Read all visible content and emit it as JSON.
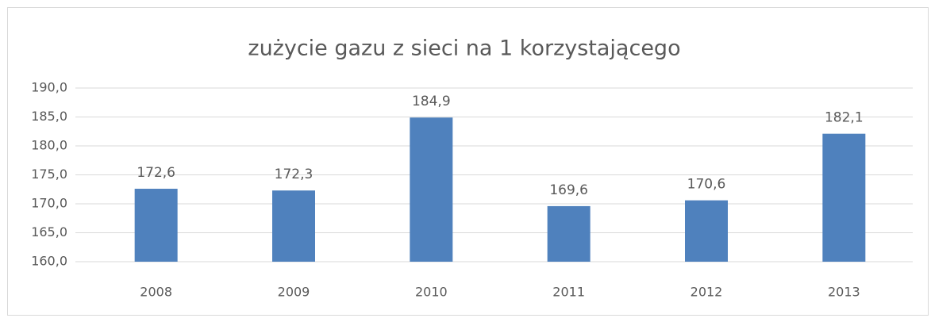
{
  "chart_data": {
    "type": "bar",
    "title": "zużycie gazu z sieci na 1 korzystającego",
    "categories": [
      "2008",
      "2009",
      "2010",
      "2011",
      "2012",
      "2013"
    ],
    "values": [
      172.6,
      172.3,
      184.9,
      169.6,
      170.6,
      182.1
    ],
    "value_labels": [
      "172,6",
      "172,3",
      "184,9",
      "169,6",
      "170,6",
      "182,1"
    ],
    "color": "#4f81bd",
    "ylim": [
      160,
      190
    ],
    "yticks": [
      {
        "value": 160,
        "label": "160,0"
      },
      {
        "value": 165,
        "label": "165,0"
      },
      {
        "value": 170,
        "label": "170,0"
      },
      {
        "value": 175,
        "label": "175,0"
      },
      {
        "value": 180,
        "label": "180,0"
      },
      {
        "value": 185,
        "label": "185,0"
      },
      {
        "value": 190,
        "label": "190,0"
      }
    ],
    "grid": true
  }
}
